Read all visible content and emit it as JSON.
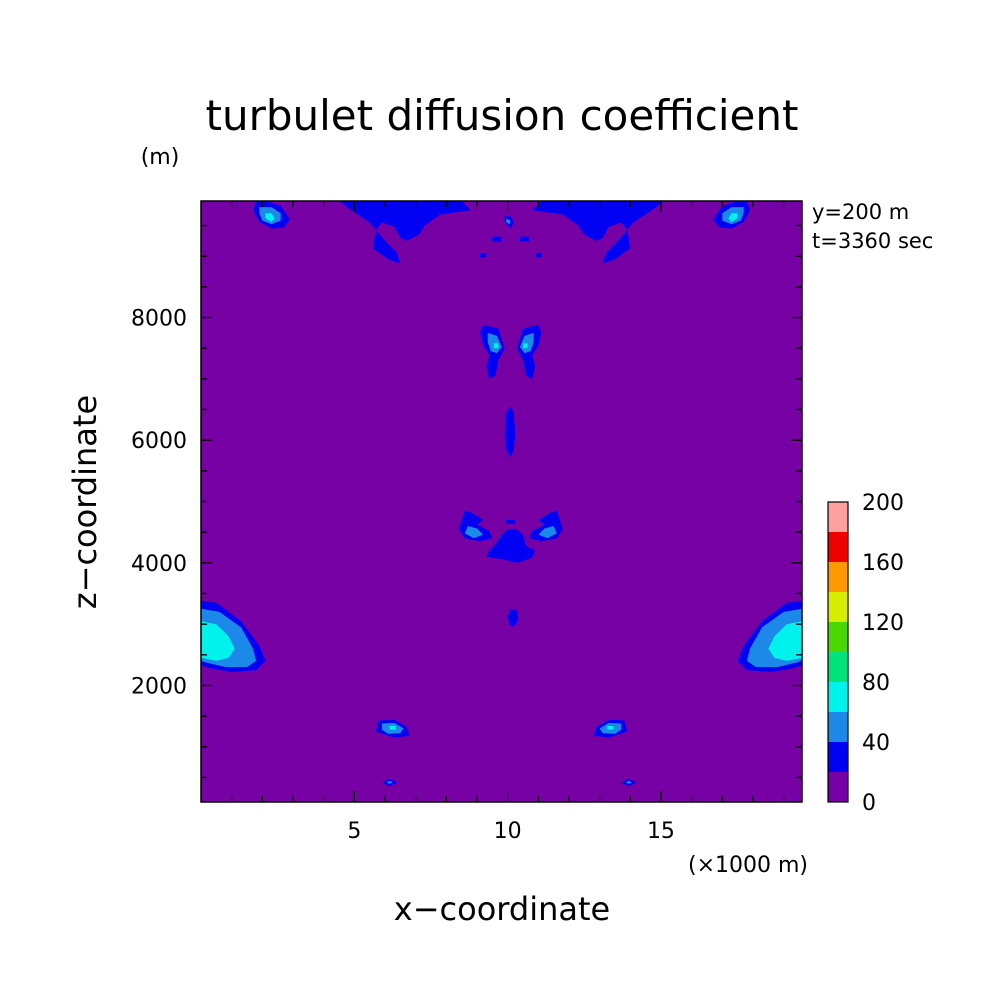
{
  "chart_data": {
    "type": "heatmap",
    "subtype": "filled-contour",
    "title": "turbulet diffusion coefficient",
    "xlabel": "x−coordinate",
    "ylabel": "z−coordinate",
    "x_unit": "(×1000 m)",
    "y_unit": "(m)",
    "xlim": [
      0,
      19.6
    ],
    "ylim": [
      100,
      9900
    ],
    "xticks": [
      5,
      10,
      15
    ],
    "xtick_labels": [
      "5",
      "10",
      "15"
    ],
    "yticks": [
      2000,
      4000,
      6000,
      8000
    ],
    "ytick_labels": [
      "2000",
      "4000",
      "6000",
      "8000"
    ],
    "annotations": [
      "y=200 m",
      "t=3360 sec"
    ],
    "colorbar": {
      "levels": [
        0,
        20,
        40,
        60,
        80,
        100,
        120,
        140,
        160,
        180,
        200
      ],
      "labels": [
        "0",
        "40",
        "80",
        "120",
        "160",
        "200"
      ],
      "colors": [
        "#7700a4",
        "#0000f2",
        "#1c88e8",
        "#00f2ec",
        "#00e27b",
        "#4ad800",
        "#d6ed00",
        "#ff9900",
        "#ee0000",
        "#ffa0a0"
      ]
    },
    "contours": [
      {
        "level": 20,
        "x": [
          0,
          0.5,
          1.3,
          1.9,
          2.1,
          1.8,
          1.0,
          0.3,
          0
        ],
        "z": [
          3380,
          3350,
          3050,
          2650,
          2400,
          2250,
          2220,
          2280,
          2330
        ]
      },
      {
        "level": 40,
        "x": [
          0,
          0.6,
          1.3,
          1.7,
          1.8,
          1.5,
          0.8,
          0.2,
          0
        ],
        "z": [
          3250,
          3200,
          2950,
          2600,
          2400,
          2300,
          2300,
          2370,
          2400
        ]
      },
      {
        "level": 60,
        "x": [
          0,
          0.5,
          0.9,
          1.1,
          0.9,
          0.5,
          0
        ],
        "z": [
          3050,
          3000,
          2800,
          2600,
          2450,
          2400,
          2450
        ]
      },
      {
        "level": 20,
        "x": [
          19.6,
          19.1,
          18.3,
          17.7,
          17.5,
          17.8,
          18.6,
          19.3,
          19.6
        ],
        "z": [
          3380,
          3350,
          3050,
          2650,
          2400,
          2250,
          2220,
          2280,
          2330
        ]
      },
      {
        "level": 40,
        "x": [
          19.6,
          19.0,
          18.3,
          17.9,
          17.8,
          18.1,
          18.8,
          19.4,
          19.6
        ],
        "z": [
          3250,
          3200,
          2950,
          2600,
          2400,
          2300,
          2300,
          2370,
          2400
        ]
      },
      {
        "level": 60,
        "x": [
          19.6,
          19.1,
          18.7,
          18.5,
          18.7,
          19.1,
          19.6
        ],
        "z": [
          3050,
          3000,
          2800,
          2600,
          2450,
          2400,
          2450
        ]
      },
      {
        "level": 20,
        "x": [
          1.8,
          2.1,
          2.6,
          2.9,
          2.7,
          2.3,
          1.9,
          1.7
        ],
        "z": [
          9900,
          9900,
          9820,
          9600,
          9470,
          9450,
          9560,
          9750
        ]
      },
      {
        "level": 40,
        "x": [
          1.9,
          2.3,
          2.6,
          2.6,
          2.3,
          2.0,
          1.9
        ],
        "z": [
          9800,
          9800,
          9700,
          9580,
          9520,
          9580,
          9700
        ]
      },
      {
        "level": 60,
        "x": [
          2.1,
          2.3,
          2.4,
          2.3,
          2.1
        ],
        "z": [
          9700,
          9700,
          9620,
          9560,
          9620
        ]
      },
      {
        "level": 20,
        "x": [
          17.8,
          17.5,
          17.0,
          16.7,
          16.9,
          17.3,
          17.7,
          17.9
        ],
        "z": [
          9900,
          9900,
          9820,
          9600,
          9470,
          9450,
          9560,
          9750
        ]
      },
      {
        "level": 40,
        "x": [
          17.7,
          17.3,
          17.0,
          17.0,
          17.3,
          17.6,
          17.7
        ],
        "z": [
          9800,
          9800,
          9700,
          9580,
          9520,
          9580,
          9700
        ]
      },
      {
        "level": 60,
        "x": [
          17.5,
          17.3,
          17.2,
          17.3,
          17.5
        ],
        "z": [
          9700,
          9700,
          9620,
          9560,
          9620
        ]
      },
      {
        "level": 20,
        "x": [
          4.5,
          8.5,
          8.8,
          7.8,
          7.3,
          7.1,
          6.7,
          6.5,
          6.3,
          5.9,
          5.7,
          5.6,
          6.1,
          6.5,
          6.4,
          6.0,
          5.5,
          4.9
        ],
        "z": [
          9900,
          9900,
          9750,
          9680,
          9500,
          9350,
          9250,
          9300,
          9480,
          9550,
          9430,
          9130,
          8950,
          8880,
          9050,
          9250,
          9550,
          9750
        ]
      },
      {
        "level": 20,
        "x": [
          15.1,
          11.1,
          10.8,
          11.8,
          12.3,
          12.5,
          12.9,
          13.1,
          13.3,
          13.7,
          13.9,
          14.0,
          13.5,
          13.1,
          13.2,
          13.6,
          14.1,
          14.7
        ],
        "z": [
          9900,
          9900,
          9750,
          9680,
          9500,
          9350,
          9250,
          9300,
          9480,
          9550,
          9430,
          9130,
          8950,
          8880,
          9050,
          9250,
          9550,
          9750
        ]
      },
      {
        "level": 20,
        "x": [
          9.9,
          10.1,
          10.2,
          10.1,
          9.9
        ],
        "z": [
          9650,
          9650,
          9560,
          9450,
          9560
        ]
      },
      {
        "level": 40,
        "x": [
          9.95,
          10.05,
          10.1,
          10.05,
          9.95
        ],
        "z": [
          9600,
          9600,
          9560,
          9520,
          9560
        ]
      },
      {
        "level": 20,
        "x": [
          9.5,
          9.8,
          9.8,
          9.5
        ],
        "z": [
          9320,
          9320,
          9240,
          9240
        ]
      },
      {
        "level": 20,
        "x": [
          10.4,
          10.7,
          10.7,
          10.4
        ],
        "z": [
          9320,
          9320,
          9240,
          9240
        ]
      },
      {
        "level": 20,
        "x": [
          9.1,
          9.3,
          9.3,
          9.1
        ],
        "z": [
          9050,
          9050,
          8980,
          8980
        ]
      },
      {
        "level": 20,
        "x": [
          10.9,
          11.1,
          11.1,
          10.9
        ],
        "z": [
          9050,
          9050,
          8980,
          8980
        ]
      },
      {
        "level": 20,
        "x": [
          9.2,
          9.7,
          9.9,
          9.7,
          9.6,
          9.4,
          9.3,
          9.4,
          9.2,
          9.1
        ],
        "z": [
          7880,
          7820,
          7500,
          7300,
          7050,
          7000,
          7200,
          7380,
          7550,
          7750
        ]
      },
      {
        "level": 40,
        "x": [
          9.35,
          9.65,
          9.8,
          9.65,
          9.45,
          9.35
        ],
        "z": [
          7750,
          7700,
          7520,
          7420,
          7450,
          7600
        ]
      },
      {
        "level": 60,
        "x": [
          9.55,
          9.7,
          9.7,
          9.55
        ],
        "z": [
          7580,
          7580,
          7500,
          7500
        ]
      },
      {
        "level": 20,
        "x": [
          11.0,
          10.5,
          10.3,
          10.5,
          10.6,
          10.8,
          10.9,
          10.8,
          11.0,
          11.1
        ],
        "z": [
          7880,
          7820,
          7500,
          7300,
          7050,
          7000,
          7200,
          7380,
          7550,
          7750
        ]
      },
      {
        "level": 40,
        "x": [
          10.85,
          10.55,
          10.4,
          10.55,
          10.75,
          10.85
        ],
        "z": [
          7750,
          7700,
          7520,
          7420,
          7450,
          7600
        ]
      },
      {
        "level": 60,
        "x": [
          10.65,
          10.5,
          10.5,
          10.65
        ],
        "z": [
          7580,
          7580,
          7500,
          7500
        ]
      },
      {
        "level": 20,
        "x": [
          10.1,
          10.2,
          10.25,
          10.2,
          10.1,
          9.95,
          9.9,
          9.95
        ],
        "z": [
          6550,
          6450,
          6100,
          5850,
          5720,
          5850,
          6100,
          6450
        ]
      },
      {
        "level": 20,
        "x": [
          8.6,
          8.8,
          9.2,
          9.0,
          9.4,
          9.5,
          9.1,
          8.6,
          8.4
        ],
        "z": [
          4850,
          4820,
          4700,
          4620,
          4520,
          4400,
          4350,
          4400,
          4550
        ]
      },
      {
        "level": 40,
        "x": [
          8.7,
          9.0,
          9.2,
          8.9,
          8.6
        ],
        "z": [
          4600,
          4560,
          4460,
          4400,
          4480
        ]
      },
      {
        "level": 20,
        "x": [
          11.6,
          11.4,
          11.0,
          11.2,
          10.8,
          10.7,
          11.1,
          11.6,
          11.8
        ],
        "z": [
          4850,
          4820,
          4700,
          4620,
          4520,
          4400,
          4350,
          4400,
          4550
        ]
      },
      {
        "level": 40,
        "x": [
          11.5,
          11.2,
          11.0,
          11.3,
          11.6
        ],
        "z": [
          4600,
          4560,
          4460,
          4400,
          4480
        ]
      },
      {
        "level": 20,
        "x": [
          9.95,
          10.25,
          10.25,
          9.95
        ],
        "z": [
          4700,
          4700,
          4640,
          4640
        ]
      },
      {
        "level": 20,
        "x": [
          9.8,
          10.0,
          10.3,
          10.5,
          10.6,
          10.9,
          10.8,
          10.3,
          9.9,
          9.3,
          9.4,
          9.6
        ],
        "z": [
          4450,
          4550,
          4550,
          4450,
          4280,
          4200,
          4080,
          4000,
          4050,
          4100,
          4200,
          4300
        ]
      },
      {
        "level": 20,
        "x": [
          10.1,
          10.3,
          10.35,
          10.2,
          10.05,
          10.0
        ],
        "z": [
          3250,
          3220,
          3080,
          2950,
          3000,
          3120
        ]
      },
      {
        "level": 20,
        "x": [
          5.8,
          6.3,
          6.7,
          6.8,
          6.3,
          5.7
        ],
        "z": [
          1430,
          1440,
          1330,
          1180,
          1150,
          1250
        ]
      },
      {
        "level": 40,
        "x": [
          5.9,
          6.3,
          6.6,
          6.5,
          6.1,
          5.9
        ],
        "z": [
          1380,
          1390,
          1300,
          1220,
          1210,
          1280
        ]
      },
      {
        "level": 60,
        "x": [
          6.15,
          6.35,
          6.35,
          6.15
        ],
        "z": [
          1340,
          1340,
          1280,
          1280
        ]
      },
      {
        "level": 20,
        "x": [
          13.8,
          13.3,
          12.9,
          12.8,
          13.3,
          13.9
        ],
        "z": [
          1430,
          1440,
          1330,
          1180,
          1150,
          1250
        ]
      },
      {
        "level": 40,
        "x": [
          13.7,
          13.3,
          13.0,
          13.1,
          13.5,
          13.7
        ],
        "z": [
          1380,
          1390,
          1300,
          1220,
          1210,
          1280
        ]
      },
      {
        "level": 60,
        "x": [
          13.45,
          13.25,
          13.25,
          13.45
        ],
        "z": [
          1340,
          1340,
          1280,
          1280
        ]
      },
      {
        "level": 20,
        "x": [
          5.9,
          6.15,
          6.4,
          6.15
        ],
        "z": [
          420,
          480,
          420,
          360
        ]
      },
      {
        "level": 40,
        "x": [
          6.05,
          6.15,
          6.25,
          6.15
        ],
        "z": [
          420,
          445,
          420,
          395
        ]
      },
      {
        "level": 20,
        "x": [
          13.7,
          13.95,
          14.2,
          13.95
        ],
        "z": [
          420,
          480,
          420,
          360
        ]
      },
      {
        "level": 40,
        "x": [
          13.85,
          13.95,
          14.05,
          13.95
        ],
        "z": [
          420,
          445,
          420,
          395
        ]
      }
    ]
  }
}
